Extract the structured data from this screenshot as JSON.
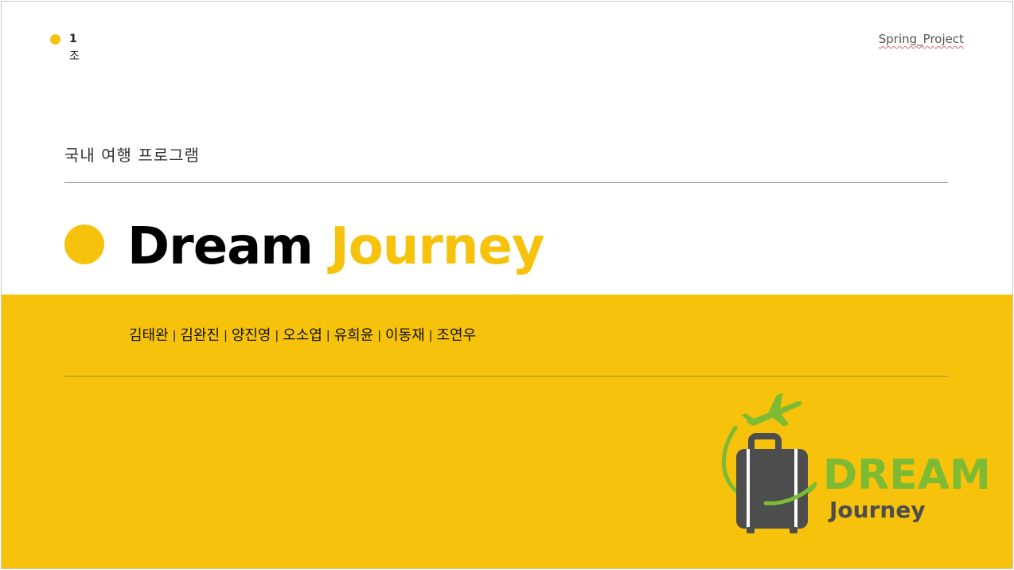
{
  "header": {
    "group_number": "1",
    "group_suffix": "조",
    "project_label": "Spring_Project"
  },
  "subtitle": "국내 여행 프로그램",
  "title": {
    "part1": "Dream",
    "part2": "Journey"
  },
  "members": [
    "김태완",
    "김완진",
    "양진영",
    "오소엽",
    "유희윤",
    "이동재",
    "조연우"
  ],
  "member_separator": "|",
  "logo": {
    "word1": "DREAM",
    "word2": "Journey",
    "icon": "airplane-suitcase-icon"
  },
  "colors": {
    "accent_yellow": "#f6c20b",
    "logo_green": "#7dbb35",
    "logo_gray": "#4d4d4d"
  }
}
